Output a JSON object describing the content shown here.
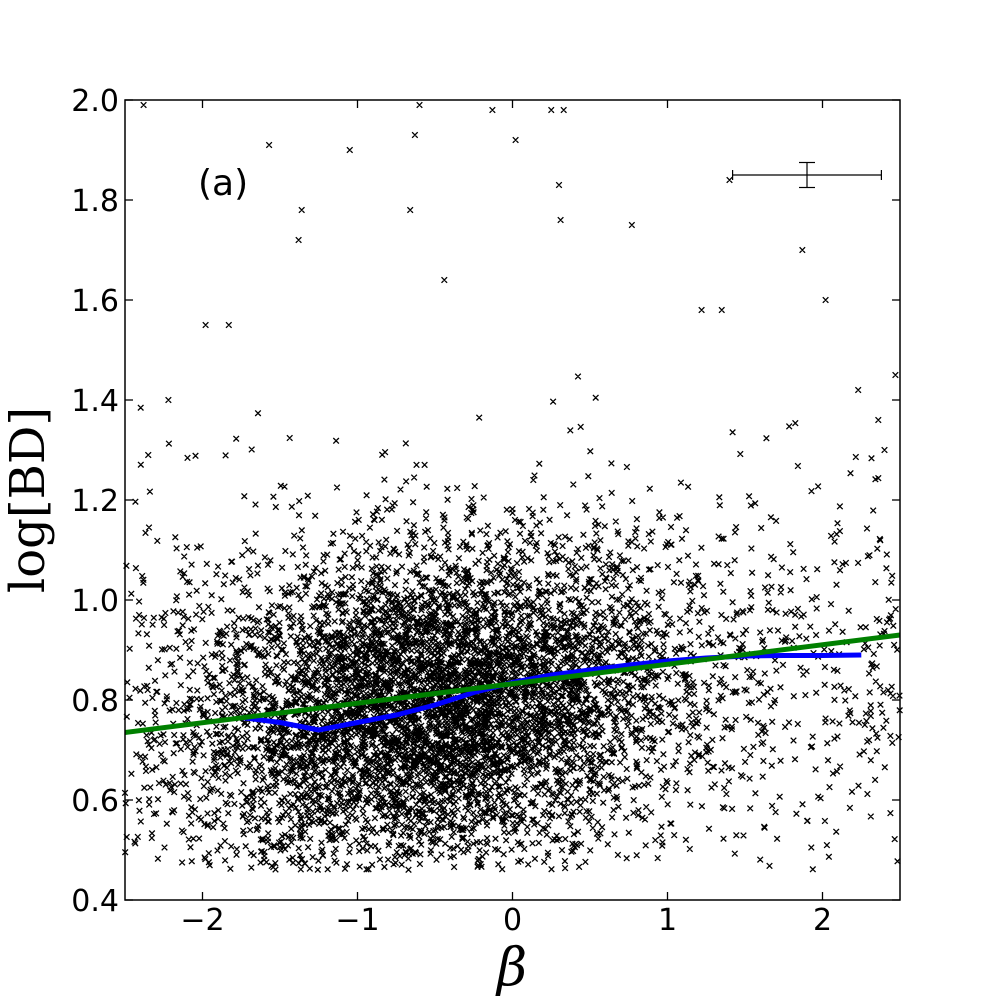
{
  "chart_data": {
    "type": "scatter",
    "panel_label": "(a)",
    "xlabel": "β",
    "ylabel": "log[BD]",
    "xlim": [
      -2.5,
      2.5
    ],
    "ylim": [
      0.4,
      2.0
    ],
    "x_ticks": [
      -2,
      -1,
      0,
      1,
      2
    ],
    "x_tick_labels": [
      "−2",
      "−1",
      "0",
      "1",
      "2"
    ],
    "y_ticks": [
      0.4,
      0.6,
      0.8,
      1.0,
      1.2,
      1.4,
      1.6,
      1.8,
      2.0
    ],
    "y_tick_labels": [
      "0.4",
      "0.6",
      "0.8",
      "1.0",
      "1.2",
      "1.4",
      "1.6",
      "1.8",
      "2.0"
    ],
    "grid": false,
    "scatter": {
      "marker": "x",
      "color": "#000000",
      "approx_count": 12000,
      "center_x": -0.5,
      "center_y": 0.83,
      "note_points_sample": [
        [
          -2.38,
          1.99
        ],
        [
          -0.6,
          1.99
        ],
        [
          -0.13,
          1.98
        ],
        [
          0.25,
          1.98
        ],
        [
          0.33,
          1.98
        ],
        [
          -1.57,
          1.91
        ],
        [
          -1.05,
          1.9
        ],
        [
          0.02,
          1.92
        ],
        [
          -0.63,
          1.93
        ],
        [
          1.4,
          1.84
        ],
        [
          1.87,
          1.7
        ],
        [
          2.02,
          1.6
        ],
        [
          -1.36,
          1.78
        ],
        [
          -0.66,
          1.78
        ],
        [
          0.3,
          1.83
        ],
        [
          0.31,
          1.76
        ],
        [
          -1.38,
          1.72
        ],
        [
          -0.44,
          1.64
        ],
        [
          0.77,
          1.75
        ],
        [
          1.22,
          1.58
        ],
        [
          1.35,
          1.58
        ],
        [
          2.23,
          1.42
        ],
        [
          2.47,
          1.45
        ],
        [
          2.36,
          1.36
        ],
        [
          2.4,
          1.3
        ],
        [
          -2.22,
          1.4
        ],
        [
          -2.35,
          1.29
        ],
        [
          -1.98,
          1.55
        ],
        [
          -1.83,
          1.55
        ]
      ]
    },
    "series": [
      {
        "name": "",
        "type": "line",
        "color": "#0000ff",
        "x": [
          -1.75,
          -1.5,
          -1.25,
          -1.0,
          -0.75,
          -0.5,
          -0.25,
          0.0,
          0.25,
          0.5,
          0.75,
          1.0,
          1.25,
          1.5,
          1.75,
          2.0,
          2.25
        ],
        "y": [
          0.765,
          0.755,
          0.74,
          0.755,
          0.77,
          0.79,
          0.815,
          0.835,
          0.85,
          0.86,
          0.87,
          0.878,
          0.884,
          0.888,
          0.889,
          0.889,
          0.89
        ]
      },
      {
        "name": "",
        "type": "line",
        "color": "#008000",
        "x": [
          -2.5,
          2.5
        ],
        "y": [
          0.735,
          0.93
        ]
      }
    ],
    "error_bar": {
      "x": 1.9,
      "y": 1.85,
      "x_err": 0.48,
      "y_err": 0.025
    }
  }
}
